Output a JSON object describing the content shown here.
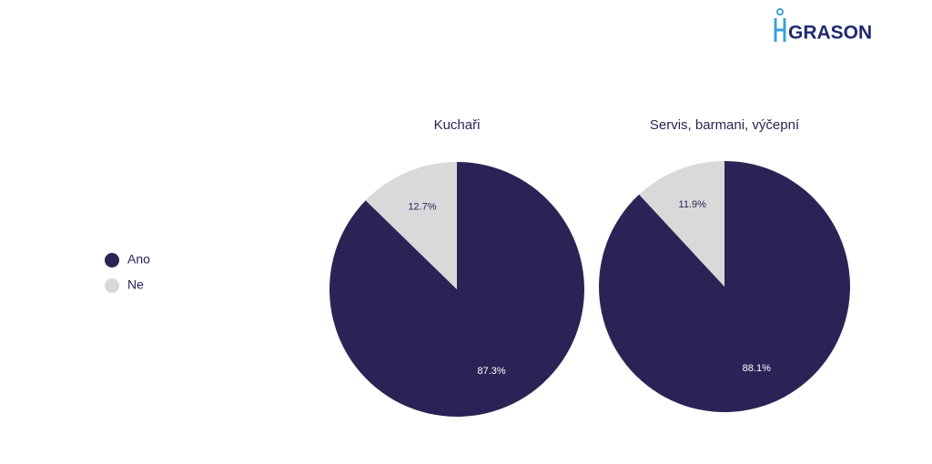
{
  "logo": "GRASON",
  "legend_position": "left",
  "chart_data": [
    {
      "type": "pie",
      "title": "Kuchaři",
      "categories": [
        "Ano",
        "Ne"
      ],
      "values": [
        87.3,
        12.7
      ],
      "value_labels": [
        "87.3%",
        "12.7%"
      ],
      "colors": [
        "#2a2456",
        "#d9d9d9"
      ]
    },
    {
      "type": "pie",
      "title": "Servis, barmani, výčepní",
      "categories": [
        "Ano",
        "Ne"
      ],
      "values": [
        88.1,
        11.9
      ],
      "value_labels": [
        "88.1%",
        "11.9%"
      ],
      "colors": [
        "#2a2456",
        "#d9d9d9"
      ]
    }
  ]
}
